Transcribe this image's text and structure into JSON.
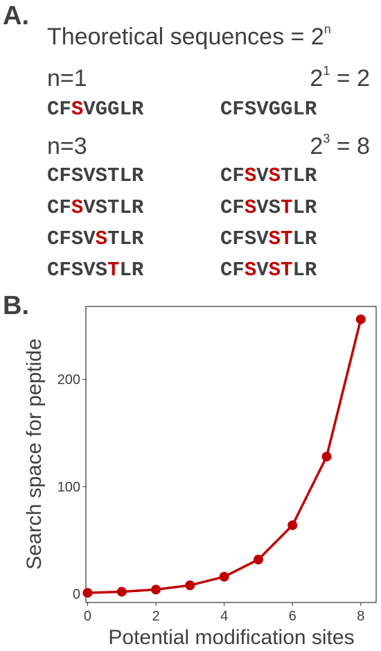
{
  "panel_a": {
    "label": "A.",
    "title_text": "Theoretical sequences = 2",
    "title_sup": "n",
    "groups": [
      {
        "n_label": "n=1",
        "formula_base": "2",
        "formula_sup": "1",
        "formula_rest": " = 2",
        "sequences": [
          {
            "text": "CFSVGGLR",
            "highlight": [
              2
            ]
          },
          {
            "text": "CFSVGGLR",
            "highlight": []
          }
        ]
      },
      {
        "n_label": "n=3",
        "formula_base": "2",
        "formula_sup": "3",
        "formula_rest": " = 8",
        "sequences": [
          {
            "text": "CFSVSTLR",
            "highlight": []
          },
          {
            "text": "CFSVSTLR",
            "highlight": [
              2,
              4
            ]
          },
          {
            "text": "CFSVSTLR",
            "highlight": [
              2
            ]
          },
          {
            "text": "CFSVSTLR",
            "highlight": [
              2,
              5
            ]
          },
          {
            "text": "CFSVSTLR",
            "highlight": [
              4
            ]
          },
          {
            "text": "CFSVSTLR",
            "highlight": [
              4,
              5
            ]
          },
          {
            "text": "CFSVSTLR",
            "highlight": [
              5
            ]
          },
          {
            "text": "CFSVSTLR",
            "highlight": [
              2,
              4,
              5
            ]
          }
        ]
      }
    ],
    "highlight_color": "#c00000"
  },
  "panel_b": {
    "label": "B."
  },
  "chart_data": {
    "type": "line",
    "x": [
      0,
      1,
      2,
      3,
      4,
      5,
      6,
      7,
      8
    ],
    "series": [
      {
        "values": [
          1,
          2,
          4,
          8,
          16,
          32,
          64,
          128,
          256
        ],
        "color": "#c00000"
      }
    ],
    "xlabel": "Potential modification sites",
    "ylabel": "Search space for peptide",
    "x_ticks": [
      0,
      2,
      4,
      6,
      8
    ],
    "y_ticks": [
      0,
      100,
      200
    ],
    "xlim": [
      0,
      8
    ],
    "ylim": [
      0,
      256
    ],
    "grid": false,
    "markers": true
  }
}
